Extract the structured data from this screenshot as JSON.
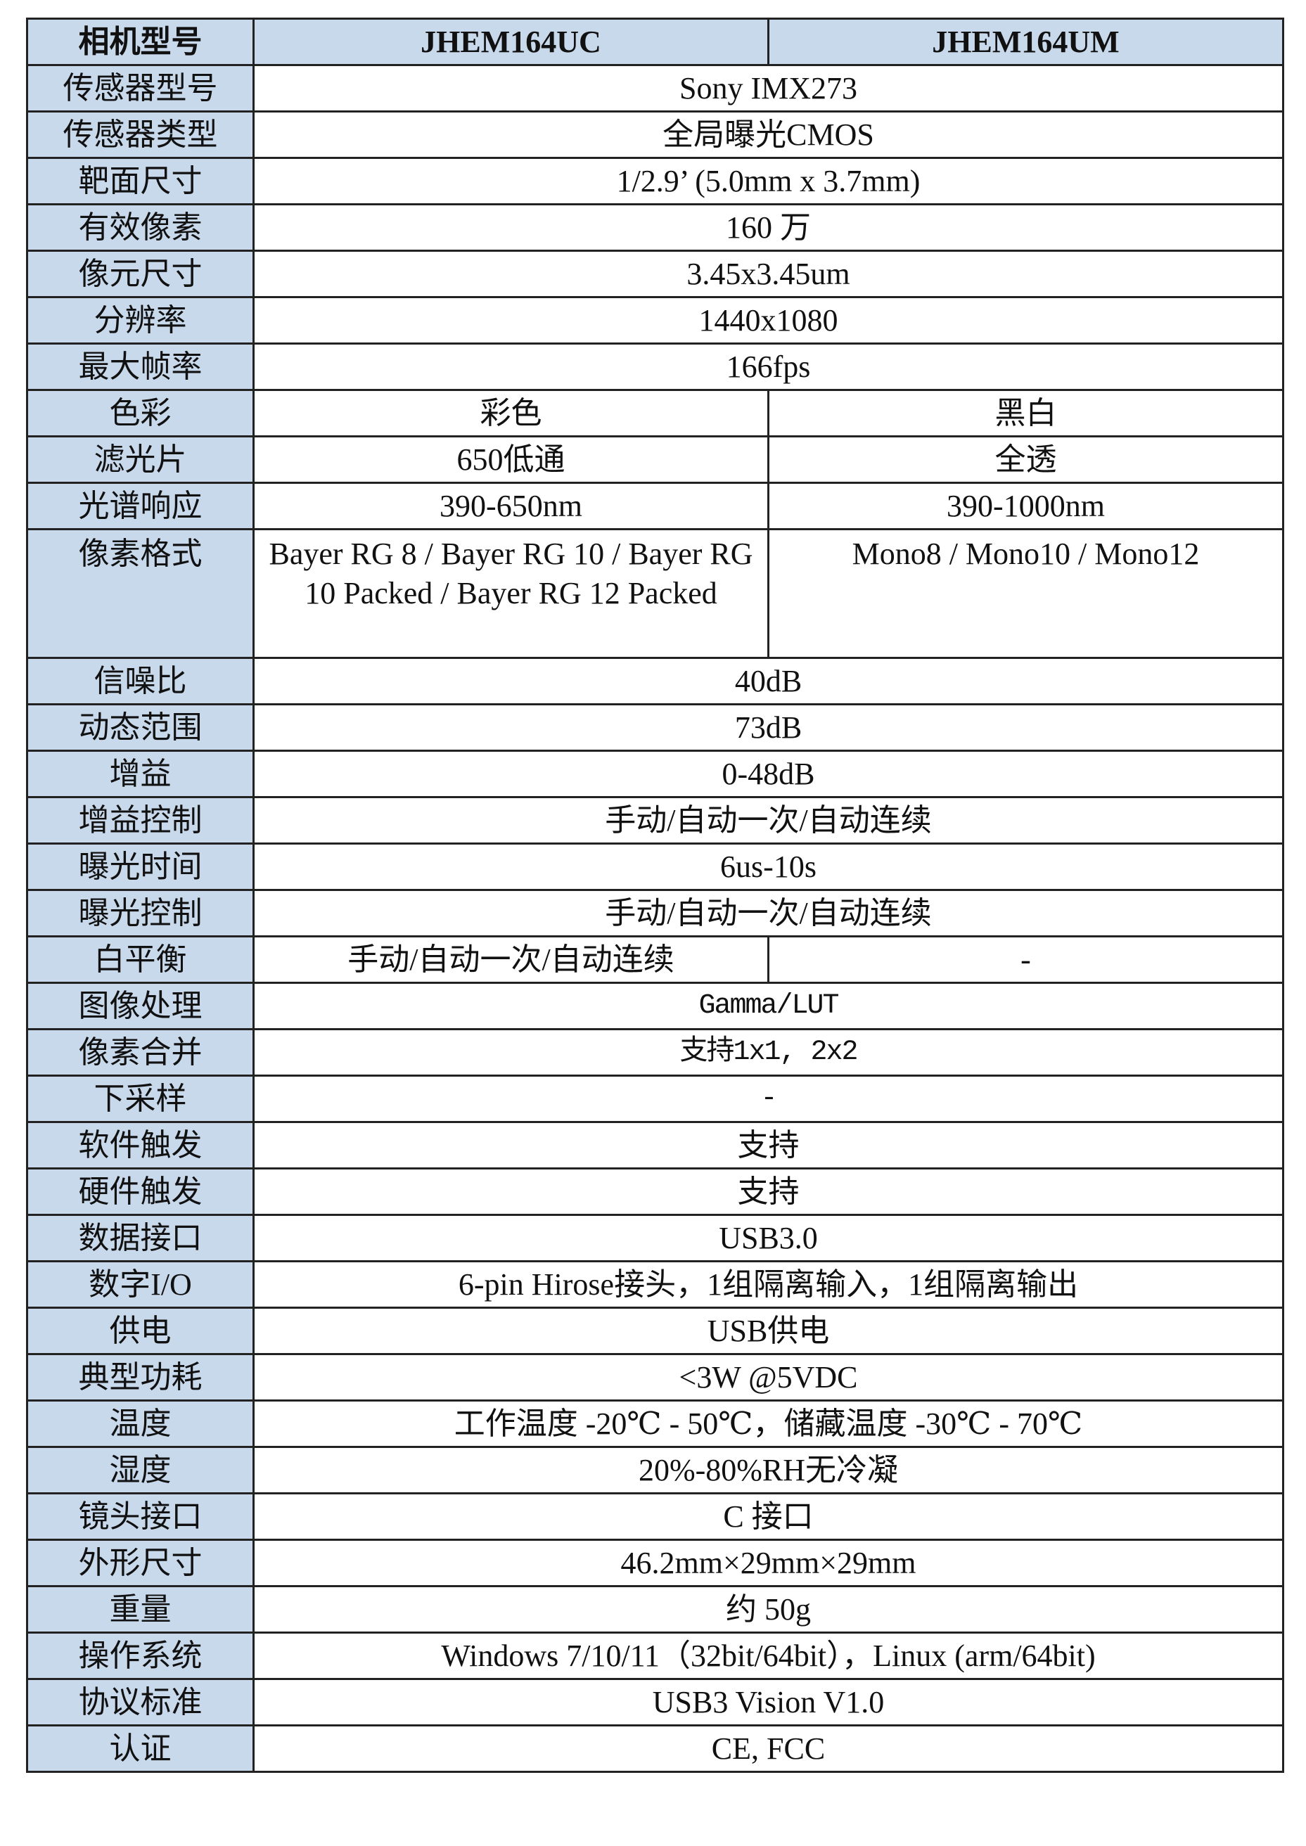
{
  "header": {
    "label": "相机型号",
    "uc": "JHEM164UC",
    "um": "JHEM164UM"
  },
  "rows": [
    {
      "label": "传感器型号",
      "value": "Sony IMX273"
    },
    {
      "label": "传感器类型",
      "value": "全局曝光CMOS"
    },
    {
      "label": "靶面尺寸",
      "value": "1/2.9’ (5.0mm x 3.7mm)"
    },
    {
      "label": "有效像素",
      "value": "160 万"
    },
    {
      "label": "像元尺寸",
      "value": "3.45x3.45um"
    },
    {
      "label": "分辨率",
      "value": "1440x1080"
    },
    {
      "label": "最大帧率",
      "value": "166fps"
    },
    {
      "label": "色彩",
      "uc": "彩色",
      "um": "黑白"
    },
    {
      "label": "滤光片",
      "uc": "650低通",
      "um": "全透"
    },
    {
      "label": "光谱响应",
      "uc": "390-650nm",
      "um": "390-1000nm"
    },
    {
      "label": "像素格式",
      "uc": "Bayer RG 8 / Bayer RG 10 / Bayer RG 10 Packed / Bayer RG 12 Packed",
      "um": "Mono8 / Mono10 / Mono12"
    },
    {
      "label": "信噪比",
      "value": "40dB"
    },
    {
      "label": "动态范围",
      "value": "73dB"
    },
    {
      "label": "增益",
      "value": "0-48dB"
    },
    {
      "label": "增益控制",
      "value": "手动/自动一次/自动连续"
    },
    {
      "label": "曝光时间",
      "value": "6us-10s"
    },
    {
      "label": "曝光控制",
      "value": "手动/自动一次/自动连续"
    },
    {
      "label": "白平衡",
      "uc": "手动/自动一次/自动连续",
      "um": "-"
    },
    {
      "label": "图像处理",
      "value": "Gamma/LUT"
    },
    {
      "label": "像素合并",
      "value": "支持1x1, 2x2"
    },
    {
      "label": "下采样",
      "value": "-"
    },
    {
      "label": "软件触发",
      "value": "支持"
    },
    {
      "label": "硬件触发",
      "value": "支持"
    },
    {
      "label": "数据接口",
      "value": "USB3.0"
    },
    {
      "label": "数字I/O",
      "value": "6-pin Hirose接头，1组隔离输入，1组隔离输出"
    },
    {
      "label": "供电",
      "value": "USB供电"
    },
    {
      "label": "典型功耗",
      "value": "<3W @5VDC"
    },
    {
      "label": "温度",
      "value": "工作温度 -20℃ - 50℃，储藏温度 -30℃ - 70℃"
    },
    {
      "label": "湿度",
      "value": "20%-80%RH无冷凝"
    },
    {
      "label": "镜头接口",
      "value": "C 接口"
    },
    {
      "label": "外形尺寸",
      "value": "46.2mm×29mm×29mm"
    },
    {
      "label": "重量",
      "value": "约 50g"
    },
    {
      "label": "操作系统",
      "value": "Windows 7/10/11（32bit/64bit），Linux (arm/64bit)"
    },
    {
      "label": "协议标准",
      "value": "USB3 Vision V1.0"
    },
    {
      "label": "认证",
      "value": "CE, FCC"
    }
  ]
}
